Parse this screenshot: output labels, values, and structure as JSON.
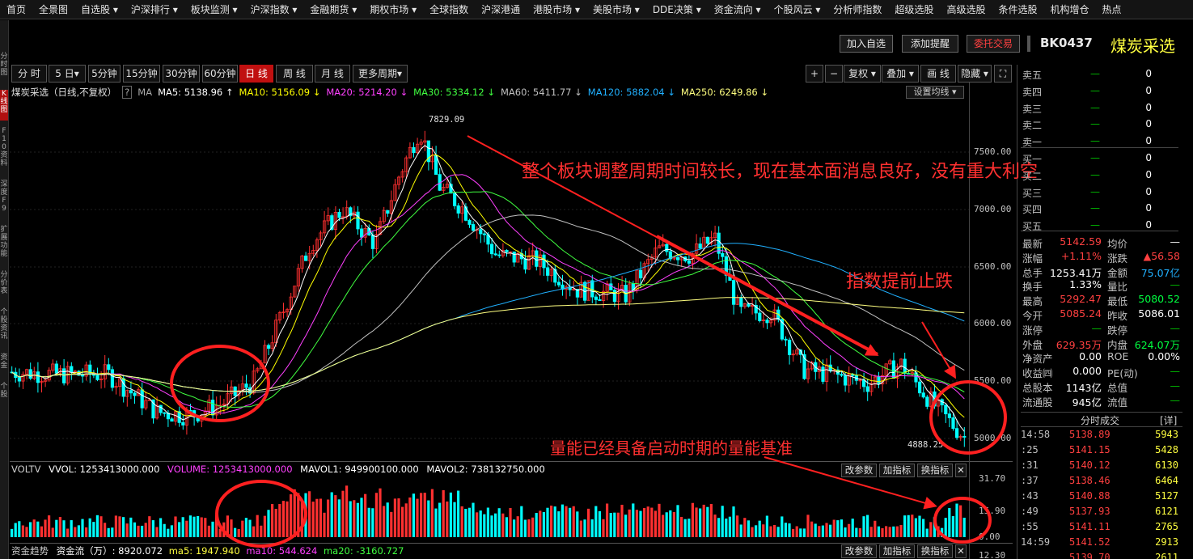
{
  "nav": [
    "首页",
    "全景图",
    "自选股 ▾",
    "沪深排行 ▾",
    "板块监测 ▾",
    "沪深指数 ▾",
    "金融期货 ▾",
    "期权市场 ▾",
    "全球指数",
    "沪深港通",
    "港股市场 ▾",
    "美股市场 ▾",
    "DDE决策 ▾",
    "资金流向 ▾",
    "个股风云 ▾",
    "分析师指数",
    "超级选股",
    "高级选股",
    "条件选股",
    "机构增仓",
    "热点"
  ],
  "left_strip": [
    "分时图",
    "K线图",
    "F10资料",
    "深度F9",
    "扩展功能",
    "分价表",
    "个股资讯",
    "资金",
    "个股"
  ],
  "actions": {
    "add_watch": "加入自选",
    "add_alert": "添加提醒",
    "trade": "委托交易",
    "code": "BK0437",
    "name": "煤炭采选"
  },
  "periods": [
    "分 时",
    "5 日▾",
    "5分钟",
    "15分钟",
    "30分钟",
    "60分钟",
    "日 线",
    "周 线",
    "月 线",
    "更多周期▾"
  ],
  "tools": [
    "+",
    "−",
    "复权 ▾",
    "叠加 ▾",
    "画 线",
    "隐藏 ▾",
    "⛶"
  ],
  "ma": {
    "label": "煤炭采选（日线,不复权）",
    "q": "?",
    "ma": "MA",
    "ma5": "MA5: 5138.96 ↑",
    "ma10": "MA10: 5156.09 ↓",
    "ma20": "MA20: 5214.20 ↓",
    "ma30": "MA30: 5334.12 ↓",
    "ma60": "MA60: 5411.77 ↓",
    "ma120": "MA120: 5882.04 ↓",
    "ma250": "MA250: 6249.86 ↓",
    "settings": "设置均线 ▾"
  },
  "colors": {
    "ma5": "#ffffff",
    "ma10": "#ffff00",
    "ma20": "#ff40ff",
    "ma30": "#40ff40",
    "ma60": "#c0c0c0",
    "ma120": "#20b0ff",
    "ma250": "#ffff80",
    "up": "#ff3030",
    "down": "#00ffff"
  },
  "axis": [
    "7500.00",
    "7000.00",
    "6500.00",
    "6000.00",
    "5500.00",
    "5000.00"
  ],
  "price_marks": {
    "high": "7829.09",
    "low": "4888.25"
  },
  "annotations": {
    "a1": "整个板块调整周期时间较长，现在基本面消息良好，没有重大利空",
    "a2": "指数提前止跌",
    "a3": "量能已经具备启动时期的量能基准"
  },
  "vol": {
    "title": "VOLTV",
    "vvol": "VVOL: 1253413000.000",
    "volume": "VOLUME: 1253413000.000",
    "mavol1": "MAVOL1: 949900100.000",
    "mavol2": "MAVOL2: 738132750.000",
    "axis": [
      "31.70",
      "15.90",
      "0.00"
    ],
    "b1": "改参数",
    "b2": "加指标",
    "b3": "换指标"
  },
  "fund": {
    "title": "资金趋势",
    "flow": "资金流（万）: 8920.072",
    "ma5": "ma5: 1947.940",
    "ma10": "ma10: 544.624",
    "ma20": "ma20: -3160.727",
    "b1": "改参数",
    "b2": "加指标",
    "b3": "换指标",
    "axis": "12.30"
  },
  "orderbook": [
    {
      "l": "卖五",
      "m": "—",
      "r": "0"
    },
    {
      "l": "卖四",
      "m": "—",
      "r": "0"
    },
    {
      "l": "卖三",
      "m": "—",
      "r": "0"
    },
    {
      "l": "卖二",
      "m": "—",
      "r": "0"
    },
    {
      "l": "卖一",
      "m": "—",
      "r": "0"
    },
    {
      "l": "买一",
      "m": "—",
      "r": "0"
    },
    {
      "l": "买二",
      "m": "—",
      "r": "0"
    },
    {
      "l": "买三",
      "m": "—",
      "r": "0"
    },
    {
      "l": "买四",
      "m": "—",
      "r": "0"
    },
    {
      "l": "买五",
      "m": "—",
      "r": "0"
    }
  ],
  "stats": [
    {
      "l1": "最新",
      "v1": "5142.59",
      "l2": "均价",
      "v2": "—"
    },
    {
      "l1": "涨幅",
      "v1": "+1.11%",
      "l2": "涨跌",
      "v2": "▲56.58"
    },
    {
      "l1": "总手",
      "v1": "1253.41万",
      "l2": "金额",
      "v2": "75.07亿"
    },
    {
      "l1": "换手",
      "v1": "1.33%",
      "l2": "量比",
      "v2": "—"
    },
    {
      "l1": "最高",
      "v1": "5292.47",
      "l2": "最低",
      "v2": "5080.52"
    },
    {
      "l1": "今开",
      "v1": "5085.24",
      "l2": "昨收",
      "v2": "5086.01"
    },
    {
      "l1": "涨停",
      "v1": "—",
      "l2": "跌停",
      "v2": "—"
    },
    {
      "l1": "外盘",
      "v1": "629.35万",
      "l2": "内盘",
      "v2": "624.07万"
    },
    {
      "l1": "净资产",
      "v1": "0.00",
      "l2": "ROE",
      "v2": "0.00%"
    },
    {
      "l1": "收益㈣",
      "v1": "0.000",
      "l2": "PE(动)",
      "v2": "—"
    },
    {
      "l1": "总股本",
      "v1": "1143亿",
      "l2": "总值",
      "v2": "—"
    },
    {
      "l1": "流通股",
      "v1": "945亿",
      "l2": "流值",
      "v2": "—"
    }
  ],
  "ticks_header": {
    "title": "分时成交",
    "detail": "[详]"
  },
  "ticks": [
    {
      "t": "14:58",
      "p": "5138.89",
      "v": "5943"
    },
    {
      "t": ":25",
      "p": "5141.15",
      "v": "5428"
    },
    {
      "t": ":31",
      "p": "5140.12",
      "v": "6130"
    },
    {
      "t": ":37",
      "p": "5138.46",
      "v": "6464"
    },
    {
      "t": ":43",
      "p": "5140.88",
      "v": "5127"
    },
    {
      "t": ":49",
      "p": "5137.93",
      "v": "6121"
    },
    {
      "t": ":55",
      "p": "5141.11",
      "v": "2765"
    },
    {
      "t": "14:59",
      "p": "5141.52",
      "v": "2913"
    },
    {
      "t": "",
      "p": "5139.70",
      "v": "2611"
    }
  ]
}
